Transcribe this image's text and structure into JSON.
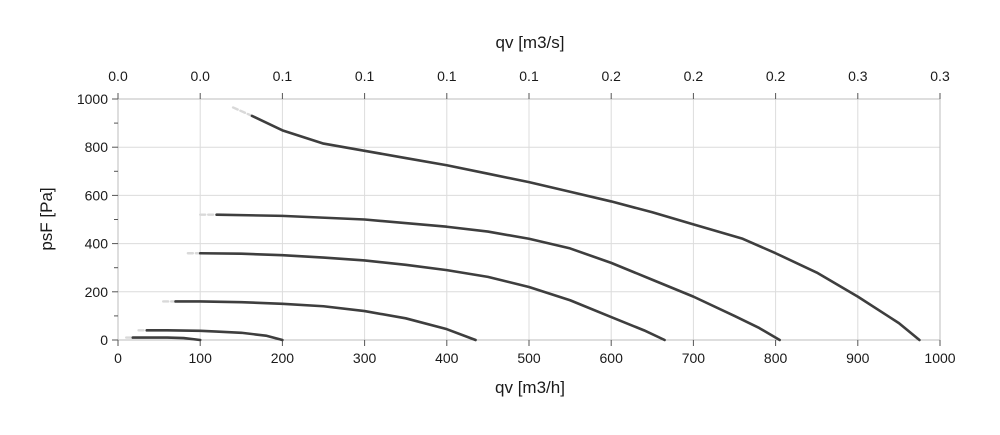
{
  "chart_data": {
    "type": "line",
    "xlabel": "qv [m3/h]",
    "ylabel": "psF [Pa]",
    "x2label": "qv [m3/s]",
    "xlim": [
      0,
      1000
    ],
    "ylim": [
      0,
      1000
    ],
    "x_ticks": [
      "0",
      "100",
      "200",
      "300",
      "400",
      "500",
      "600",
      "700",
      "800",
      "900",
      "1000"
    ],
    "y_ticks": [
      "0",
      "200",
      "400",
      "600",
      "800",
      "1000"
    ],
    "x2_ticks": [
      "0.0",
      "0.0",
      "0.1",
      "0.1",
      "0.1",
      "0.1",
      "0.2",
      "0.2",
      "0.2",
      "0.3",
      "0.3"
    ],
    "grid": true,
    "series": [
      {
        "x": [
          163,
          200,
          250,
          300,
          350,
          400,
          450,
          500,
          550,
          600,
          650,
          700,
          760,
          800,
          850,
          900,
          950,
          975
        ],
        "y": [
          930,
          870,
          815,
          785,
          755,
          725,
          690,
          655,
          615,
          575,
          530,
          480,
          420,
          360,
          280,
          180,
          70,
          0
        ],
        "extension": {
          "x": [
            140,
            163
          ],
          "y": [
            965,
            930
          ]
        }
      },
      {
        "x": [
          120,
          200,
          300,
          400,
          450,
          500,
          550,
          600,
          650,
          700,
          750,
          780,
          805
        ],
        "y": [
          520,
          515,
          500,
          470,
          450,
          420,
          380,
          320,
          250,
          180,
          100,
          50,
          0
        ],
        "extension": {
          "x": [
            100,
            120
          ],
          "y": [
            520,
            520
          ]
        }
      },
      {
        "x": [
          100,
          150,
          200,
          250,
          300,
          350,
          400,
          450,
          500,
          550,
          600,
          640,
          665
        ],
        "y": [
          360,
          358,
          352,
          342,
          330,
          312,
          290,
          262,
          220,
          165,
          95,
          40,
          0
        ],
        "extension": {
          "x": [
            85,
            100
          ],
          "y": [
            360,
            360
          ]
        }
      },
      {
        "x": [
          70,
          100,
          150,
          200,
          250,
          300,
          350,
          400,
          435
        ],
        "y": [
          160,
          160,
          157,
          150,
          140,
          120,
          90,
          45,
          0
        ],
        "extension": {
          "x": [
            55,
            70
          ],
          "y": [
            160,
            160
          ]
        }
      },
      {
        "x": [
          35,
          60,
          100,
          120,
          150,
          180,
          200
        ],
        "y": [
          40,
          40,
          38,
          35,
          30,
          18,
          0
        ],
        "extension": {
          "x": [
            25,
            35
          ],
          "y": [
            40,
            40
          ]
        }
      },
      {
        "x": [
          18,
          40,
          60,
          80,
          100
        ],
        "y": [
          10,
          10,
          10,
          8,
          0
        ],
        "extension": {
          "x": [
            10,
            18
          ],
          "y": [
            10,
            10
          ]
        }
      }
    ]
  }
}
